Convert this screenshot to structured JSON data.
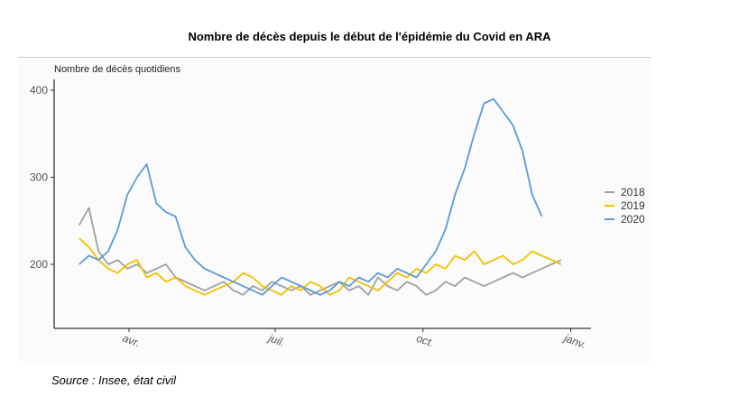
{
  "chart_data": {
    "type": "line",
    "title": "Nombre de décès depuis le début de l'épidémie du Covid en ARA",
    "ylabel": "Nombre de décès quotidiens",
    "xlabel": "",
    "ylim": [
      127,
      410
    ],
    "yticks": [
      200,
      300,
      400
    ],
    "xticks": [
      {
        "day": 91,
        "label": "avr."
      },
      {
        "day": 182,
        "label": "juil."
      },
      {
        "day": 274,
        "label": "oct."
      },
      {
        "day": 366,
        "label": "janv."
      }
    ],
    "x_unit": "day of year",
    "x_start": 60,
    "x_step": 6,
    "legend_position": "right",
    "series": [
      {
        "name": "2018",
        "color": "#a0a0a0",
        "values": [
          245,
          265,
          215,
          200,
          205,
          195,
          200,
          190,
          195,
          200,
          185,
          180,
          175,
          170,
          175,
          180,
          170,
          165,
          175,
          170,
          180,
          175,
          170,
          175,
          165,
          170,
          175,
          180,
          170,
          175,
          165,
          185,
          175,
          170,
          180,
          175,
          165,
          170,
          180,
          175,
          185,
          180,
          175,
          180,
          185,
          190,
          185,
          190,
          195,
          200,
          205
        ]
      },
      {
        "name": "2019",
        "color": "#f5c000",
        "values": [
          230,
          220,
          205,
          195,
          190,
          200,
          205,
          185,
          190,
          180,
          185,
          175,
          170,
          165,
          170,
          175,
          180,
          190,
          185,
          175,
          170,
          165,
          175,
          170,
          180,
          175,
          165,
          170,
          185,
          180,
          175,
          170,
          180,
          190,
          185,
          195,
          190,
          200,
          195,
          210,
          205,
          215,
          200,
          205,
          210,
          200,
          205,
          215,
          210,
          205,
          200
        ]
      },
      {
        "name": "2020",
        "color": "#5b9bd5",
        "values": [
          200,
          210,
          205,
          215,
          240,
          280,
          300,
          315,
          270,
          260,
          255,
          220,
          205,
          195,
          190,
          185,
          180,
          175,
          170,
          165,
          175,
          185,
          180,
          175,
          170,
          165,
          170,
          180,
          175,
          185,
          180,
          190,
          185,
          195,
          190,
          185,
          200,
          215,
          240,
          280,
          310,
          350,
          385,
          390,
          375,
          360,
          330,
          280,
          255
        ]
      }
    ]
  },
  "source": "Source  : Insee, état civil"
}
